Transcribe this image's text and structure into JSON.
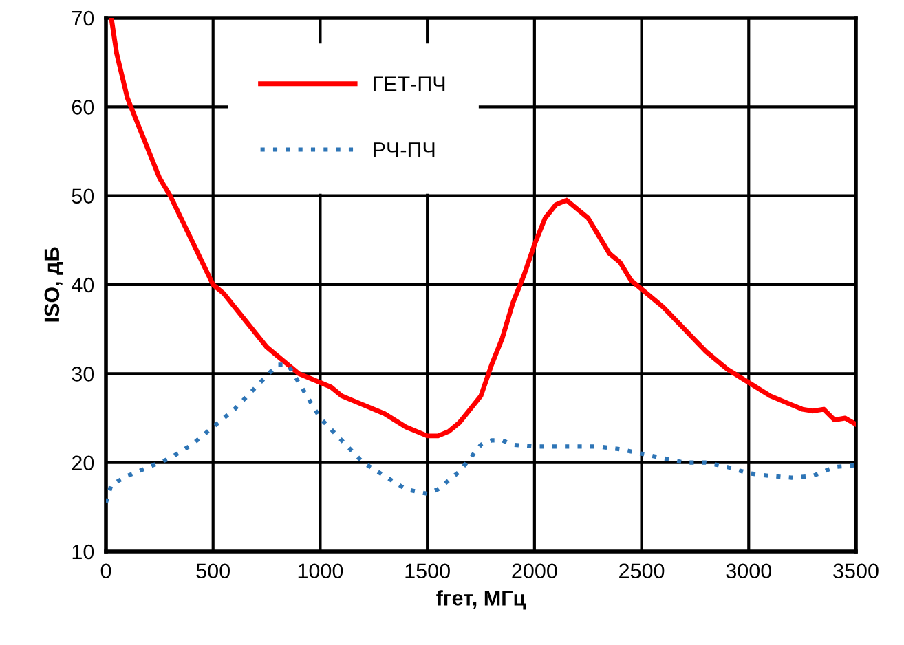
{
  "chart_data": {
    "type": "line",
    "xlabel": "fгет, МГц",
    "ylabel": "ISO, дБ",
    "xlim": [
      0,
      3500
    ],
    "xticks": [
      0,
      500,
      1000,
      1500,
      2000,
      2500,
      3000,
      3500
    ],
    "ylim": [
      10,
      70
    ],
    "yticks": [
      10,
      20,
      30,
      40,
      50,
      60,
      70
    ],
    "grid": true,
    "legend": "top left",
    "series": [
      {
        "name": "ГЕТ-ПЧ",
        "color": "#ff0000",
        "line_style": "solid",
        "x": [
          25,
          50,
          100,
          150,
          200,
          250,
          300,
          350,
          400,
          450,
          500,
          550,
          600,
          650,
          700,
          750,
          800,
          850,
          900,
          950,
          1000,
          1050,
          1100,
          1150,
          1200,
          1300,
          1400,
          1450,
          1500,
          1550,
          1600,
          1650,
          1700,
          1750,
          1800,
          1850,
          1900,
          1950,
          2000,
          2050,
          2100,
          2150,
          2200,
          2250,
          2300,
          2350,
          2400,
          2450,
          2500,
          2600,
          2700,
          2800,
          2900,
          3000,
          3100,
          3200,
          3250,
          3300,
          3350,
          3400,
          3450,
          3500
        ],
        "values": [
          70,
          66,
          61,
          58,
          55,
          52,
          50,
          47.5,
          45,
          42.5,
          40,
          39,
          37.5,
          36,
          34.5,
          33,
          32,
          31,
          30,
          29.5,
          29,
          28.5,
          27.5,
          27,
          26.5,
          25.5,
          24,
          23.5,
          23,
          23,
          23.5,
          24.5,
          26,
          27.5,
          31,
          34,
          38,
          41,
          44.5,
          47.5,
          49,
          49.5,
          48.5,
          47.5,
          45.5,
          43.5,
          42.5,
          40.5,
          39.5,
          37.5,
          35,
          32.5,
          30.5,
          29,
          27.5,
          26.5,
          26,
          25.8,
          26,
          24.8,
          25,
          24.3
        ]
      },
      {
        "name": "РЧ-ПЧ",
        "color": "#2e75b6",
        "line_style": "dotted",
        "x": [
          0,
          25,
          100,
          200,
          300,
          400,
          500,
          600,
          700,
          800,
          850,
          900,
          950,
          1000,
          1100,
          1200,
          1300,
          1400,
          1500,
          1550,
          1650,
          1700,
          1750,
          1800,
          1850,
          1900,
          2000,
          2100,
          2200,
          2300,
          2400,
          2500,
          2600,
          2700,
          2800,
          2900,
          3000,
          3100,
          3200,
          3300,
          3400,
          3500
        ],
        "values": [
          15.5,
          17.5,
          18.5,
          19.5,
          20.5,
          22,
          24,
          26,
          28.5,
          31,
          31,
          29,
          27,
          25,
          22.5,
          20,
          18.5,
          17,
          16.5,
          17,
          19,
          20.5,
          22,
          22.5,
          22.5,
          22,
          21.8,
          21.8,
          21.8,
          21.8,
          21.5,
          21,
          20.5,
          20,
          20,
          19.5,
          18.8,
          18.5,
          18.3,
          18.5,
          19.5,
          19.7
        ]
      }
    ]
  }
}
